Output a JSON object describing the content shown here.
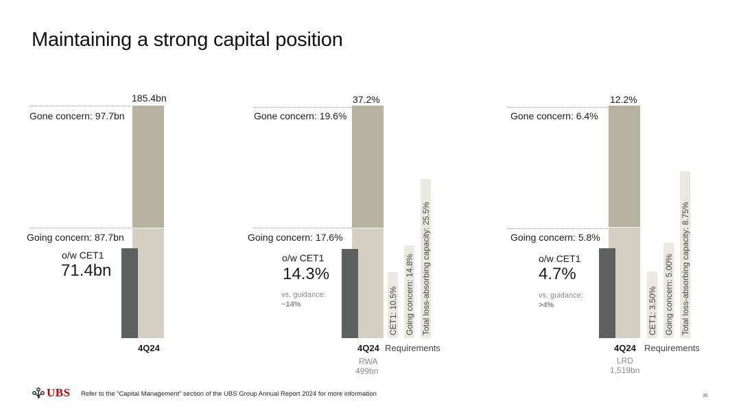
{
  "page": {
    "title": "Maintaining a strong capital position",
    "footer": "Refer to the “Capital Management” section of the UBS Group Annual Report 2024 for more information",
    "page_number": "35",
    "logo_text": "UBS"
  },
  "colors": {
    "gone": "#b8b3a0",
    "going": "#d3cfc2",
    "cet1": "#5d605e",
    "requirement": "#ebe8e2"
  },
  "chart_data": [
    {
      "type": "bar",
      "categories": [
        "4Q24"
      ],
      "series": [
        {
          "name": "Gone concern",
          "values": [
            97.7
          ]
        },
        {
          "name": "Going concern",
          "values": [
            87.7
          ]
        },
        {
          "name": "o/w CET1",
          "values": [
            71.4
          ]
        }
      ],
      "total_label": "185.4bn",
      "gone_label": "Gone concern: 97.7bn",
      "going_label": "Going concern: 87.7bn",
      "cet1_label": "o/w CET1",
      "cet1_value": "71.4bn",
      "category_label": "4Q24"
    },
    {
      "type": "bar",
      "categories": [
        "4Q24"
      ],
      "series": [
        {
          "name": "Gone concern",
          "values": [
            19.6
          ]
        },
        {
          "name": "Going concern",
          "values": [
            17.6
          ]
        },
        {
          "name": "o/w CET1",
          "values": [
            14.3
          ]
        }
      ],
      "total_label": "37.2%",
      "gone_label": "Gone concern: 19.6%",
      "going_label": "Going concern: 17.6%",
      "cet1_label": "o/w CET1",
      "cet1_value": "14.3%",
      "guidance_label": "vs. guidance:",
      "guidance_value": "~14%",
      "category_label": "4Q24",
      "sublabel_1": "RWA",
      "sublabel_2": "499bn",
      "requirements_label": "Requirements",
      "requirements": [
        {
          "label": "CET1: 10.5%",
          "value": 10.5
        },
        {
          "label": "Going concern: 14.8%",
          "value": 14.8
        },
        {
          "label": "Total loss-absorbing capacity: 25.5%",
          "value": 25.5
        }
      ]
    },
    {
      "type": "bar",
      "categories": [
        "4Q24"
      ],
      "series": [
        {
          "name": "Gone concern",
          "values": [
            6.4
          ]
        },
        {
          "name": "Going concern",
          "values": [
            5.8
          ]
        },
        {
          "name": "o/w CET1",
          "values": [
            4.7
          ]
        }
      ],
      "total_label": "12.2%",
      "gone_label": "Gone concern: 6.4%",
      "going_label": "Going concern: 5.8%",
      "cet1_label": "o/w CET1",
      "cet1_value": "4.7%",
      "guidance_label": "vs. guidance:",
      "guidance_value": ">4%",
      "category_label": "4Q24",
      "sublabel_1": "LRD",
      "sublabel_2": "1,519bn",
      "requirements_label": "Requirements",
      "requirements": [
        {
          "label": "CET1: 3.50%",
          "value": 3.5
        },
        {
          "label": "Going concern: 5.00%",
          "value": 5.0
        },
        {
          "label": "Total loss-absorbing capacity: 8.75%",
          "value": 8.75
        }
      ]
    }
  ]
}
